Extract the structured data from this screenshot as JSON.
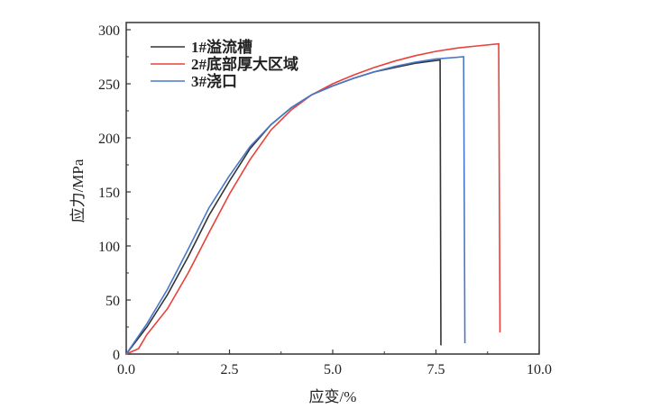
{
  "chart_data": {
    "type": "line",
    "title": "",
    "xlabel": "应变/%",
    "ylabel": "应力/MPa",
    "xlim": [
      0,
      10
    ],
    "ylim": [
      0,
      300
    ],
    "xticks": [
      "0.0",
      "2.5",
      "5.0",
      "7.5",
      "10.0"
    ],
    "yticks": [
      "0",
      "50",
      "100",
      "150",
      "200",
      "250",
      "300"
    ],
    "grid": false,
    "legend_position": "top-left",
    "series": [
      {
        "name": "1#溢流槽",
        "color": "#333333",
        "x": [
          0,
          0.5,
          1,
          1.5,
          2,
          2.5,
          3,
          3.5,
          4,
          4.5,
          5,
          5.5,
          6,
          6.5,
          7,
          7.6,
          7.62
        ],
        "y": [
          0,
          25,
          55,
          90,
          128,
          160,
          190,
          212,
          228,
          240,
          248,
          255,
          261,
          265,
          269,
          272,
          8
        ]
      },
      {
        "name": "2#底部厚大区域",
        "color": "#e8403a",
        "x": [
          0,
          0.3,
          0.5,
          1,
          1.5,
          2,
          2.5,
          3,
          3.5,
          4,
          4.5,
          5,
          5.5,
          6,
          6.5,
          7,
          7.5,
          8,
          8.5,
          9.02,
          9.05
        ],
        "y": [
          0,
          5,
          18,
          42,
          75,
          112,
          148,
          180,
          207,
          226,
          240,
          250,
          258,
          265,
          271,
          276,
          280,
          283,
          285,
          287,
          20
        ]
      },
      {
        "name": "3#浇口",
        "color": "#4a78c8",
        "x": [
          0,
          0.5,
          1,
          1.5,
          2,
          2.5,
          3,
          3.5,
          4,
          4.5,
          5,
          5.5,
          6,
          6.5,
          7,
          7.5,
          8.17,
          8.2
        ],
        "y": [
          0,
          28,
          60,
          97,
          135,
          165,
          192,
          212,
          228,
          240,
          248,
          255,
          261,
          266,
          270,
          273,
          275,
          10
        ]
      }
    ]
  }
}
